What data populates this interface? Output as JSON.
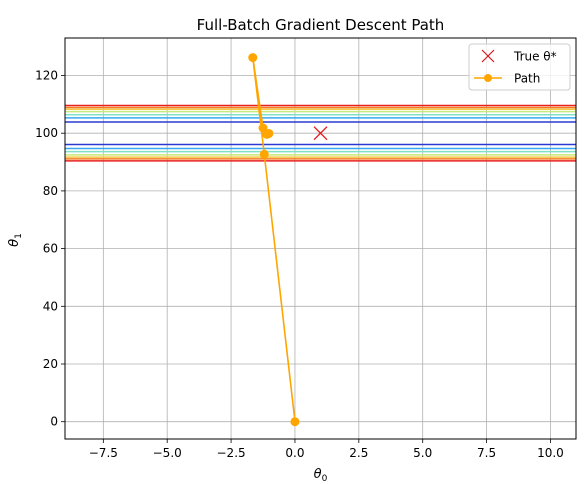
{
  "chart_data": {
    "type": "line",
    "title": "Full-Batch Gradient Descent Path",
    "xlabel": "θ",
    "xlabel_sub": "0",
    "ylabel": "θ",
    "ylabel_sub": "1",
    "xlim": [
      -9.0,
      11.0
    ],
    "ylim": [
      -6.0,
      133.0
    ],
    "xticks": [
      -7.5,
      -5.0,
      -2.5,
      0.0,
      2.5,
      5.0,
      7.5,
      10.0
    ],
    "xtick_labels": [
      "−7.5",
      "−5.0",
      "−2.5",
      "0.0",
      "2.5",
      "5.0",
      "7.5",
      "10.0"
    ],
    "yticks": [
      0,
      20,
      40,
      60,
      80,
      100,
      120
    ],
    "ytick_labels": [
      "0",
      "20",
      "40",
      "60",
      "80",
      "100",
      "120"
    ],
    "grid": true,
    "legend_position": "top-right",
    "true_point": {
      "name": "True θ*",
      "x": 1.0,
      "y": 100.0,
      "marker": "x",
      "color": "#e41a1c"
    },
    "path": {
      "name": "Path",
      "color": "#ffa500",
      "x": [
        0.0,
        -1.2,
        -1.65,
        -1.25,
        -1.1,
        -1.05,
        -1.02
      ],
      "y": [
        0.0,
        92.7,
        126.2,
        101.8,
        99.6,
        99.8,
        99.9
      ]
    },
    "contours": [
      {
        "y": 90.4,
        "color": "#e8231e"
      },
      {
        "y": 91.1,
        "color": "#f77b26"
      },
      {
        "y": 91.7,
        "color": "#f3c845"
      },
      {
        "y": 92.5,
        "color": "#c8e87a"
      },
      {
        "y": 93.6,
        "color": "#7fe2c6"
      },
      {
        "y": 94.7,
        "color": "#38a9f0"
      },
      {
        "y": 96.1,
        "color": "#2b3ad0"
      },
      {
        "y": 103.9,
        "color": "#2b3ad0"
      },
      {
        "y": 105.3,
        "color": "#38a9f0"
      },
      {
        "y": 106.4,
        "color": "#7fe2c6"
      },
      {
        "y": 107.5,
        "color": "#c8e87a"
      },
      {
        "y": 108.3,
        "color": "#f3c845"
      },
      {
        "y": 108.9,
        "color": "#f77b26"
      },
      {
        "y": 109.6,
        "color": "#e8231e"
      }
    ]
  }
}
